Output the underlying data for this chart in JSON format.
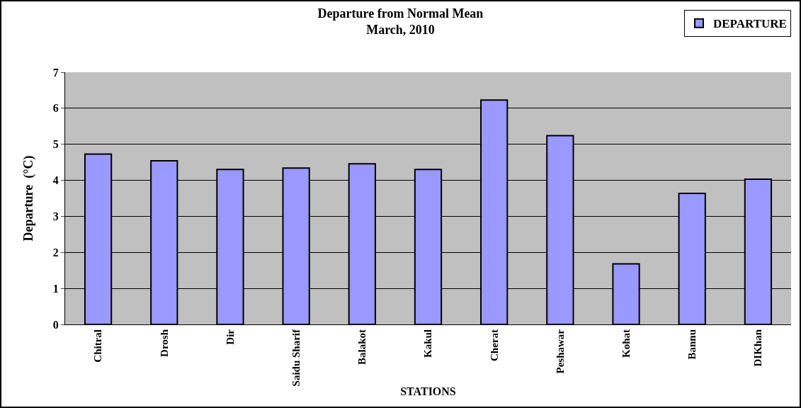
{
  "chart_data": {
    "type": "bar",
    "title": "Departure from Normal Mean",
    "subtitle": "March, 2010",
    "xlabel": "STATIONS",
    "ylabel": "Departure  (°C)",
    "categories": [
      "Chitral",
      "Drosh",
      "Dir",
      "Saidu Sharif",
      "Balakot",
      "Kakul",
      "Cherat",
      "Peshawar",
      "Kohat",
      "Bannu",
      "DIKhan"
    ],
    "series": [
      {
        "name": "DEPARTURE",
        "color": "#9999ff",
        "values": [
          4.73,
          4.54,
          4.3,
          4.34,
          4.46,
          4.3,
          6.23,
          5.24,
          1.68,
          3.64,
          4.03
        ]
      }
    ],
    "ylim": [
      0,
      7
    ],
    "yticks": [
      0,
      1,
      2,
      3,
      4,
      5,
      6,
      7
    ],
    "grid": "y",
    "legend": "top right"
  }
}
